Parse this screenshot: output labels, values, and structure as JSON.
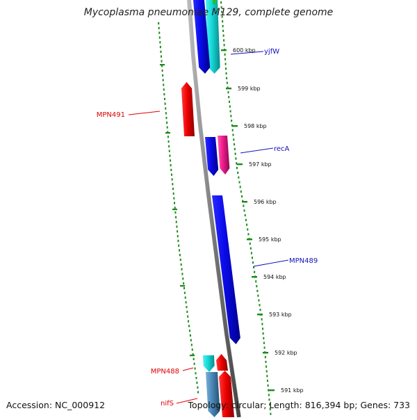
{
  "title": "Mycoplasma pneumoniae M129, complete genome",
  "footer": {
    "accession": "Accession: NC_000912",
    "summary": "Topology: circular; Length: 816,394 bp; Genes: 733"
  },
  "scale": {
    "unit": "kbp",
    "ticks": [
      "600 kbp",
      "599 kbp",
      "598 kbp",
      "597 kbp",
      "596 kbp",
      "595 kbp",
      "594 kbp",
      "593 kbp",
      "592 kbp",
      "591 kbp"
    ]
  },
  "gene_labels": [
    {
      "text": "yjfW",
      "color": "#1010c0"
    },
    {
      "text": "MPN491",
      "color": "#dd0000"
    },
    {
      "text": "recA",
      "color": "#1010c0"
    },
    {
      "text": "MPN489",
      "color": "#1010c0"
    },
    {
      "text": "MPN488",
      "color": "#dd0000"
    },
    {
      "text": "nifS",
      "color": "#dd0000"
    }
  ],
  "colors": {
    "forward_strand": "#0a0aee",
    "reverse_strand": "#ee0000",
    "cyan_gene": "#14d6d6",
    "magenta_gene": "#ee1a8a",
    "steelblue_gene": "#4a86b8",
    "backbone": "#888888",
    "tick_green": "#1a8a1a"
  }
}
